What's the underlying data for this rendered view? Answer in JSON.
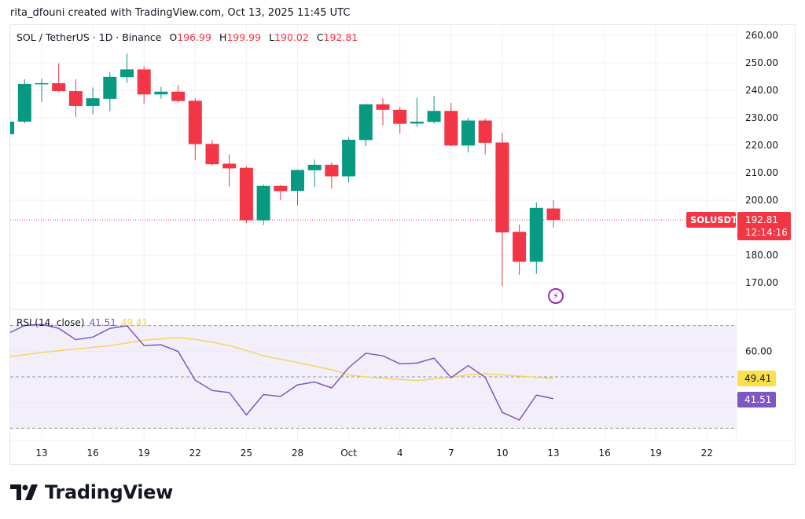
{
  "credit": "rita_dfouni created with TradingView.com, Oct 13, 2025 11:45 UTC",
  "legend": {
    "symbol": "SOL / TetherUS · 1D · Binance",
    "o_label": "O",
    "o": "196.99",
    "h_label": "H",
    "h": "199.99",
    "l_label": "L",
    "l": "190.02",
    "c_label": "C",
    "c": "192.81"
  },
  "badges": {
    "symbol": "SOLUSDT",
    "last_price": "192.81",
    "countdown": "12:14:16",
    "rsi_ma": "49.41",
    "rsi": "41.51"
  },
  "rsi_legend": {
    "title": "RSI (14, close)",
    "rsi": "41.51",
    "ma": "49.41"
  },
  "colors": {
    "up": "#089981",
    "down": "#f23645",
    "rsi": "#7e57c2",
    "rsi_ma": "#f5d55a",
    "rsi_band": "#f3effa"
  },
  "icons": {
    "lightning": "lightning-icon",
    "logo": "tradingview-logo"
  },
  "logo_text": "TradingView",
  "chart_data": [
    {
      "type": "candlestick",
      "title": "SOL / TetherUS · 1D · Binance",
      "ylim": [
        165,
        262
      ],
      "yticks": [
        "260.00",
        "250.00",
        "240.00",
        "230.00",
        "220.00",
        "210.00",
        "200.00",
        "180.00",
        "170.00"
      ],
      "ytick_values": [
        260,
        250,
        240,
        230,
        220,
        210,
        200,
        180,
        170
      ],
      "xtick_labels": [
        "13",
        "16",
        "19",
        "22",
        "25",
        "28",
        "Oct",
        "4",
        "7",
        "10",
        "13",
        "16",
        "19",
        "22"
      ],
      "grid": true,
      "last_price": 192.81,
      "candles": [
        {
          "date": "2025-09-11",
          "o": 224.0,
          "h": 229.0,
          "l": 223.5,
          "c": 228.6
        },
        {
          "date": "2025-09-12",
          "o": 228.6,
          "h": 244.0,
          "l": 228.0,
          "c": 242.3
        },
        {
          "date": "2025-09-13",
          "o": 242.3,
          "h": 244.3,
          "l": 235.7,
          "c": 242.6
        },
        {
          "date": "2025-09-14",
          "o": 242.6,
          "h": 249.8,
          "l": 239.4,
          "c": 239.7
        },
        {
          "date": "2025-09-15",
          "o": 239.7,
          "h": 244.0,
          "l": 230.3,
          "c": 234.3
        },
        {
          "date": "2025-09-16",
          "o": 234.3,
          "h": 241.0,
          "l": 231.4,
          "c": 237.1
        },
        {
          "date": "2025-09-17",
          "o": 236.9,
          "h": 246.7,
          "l": 232.4,
          "c": 244.9
        },
        {
          "date": "2025-09-18",
          "o": 244.8,
          "h": 253.4,
          "l": 242.7,
          "c": 247.6
        },
        {
          "date": "2025-09-19",
          "o": 247.6,
          "h": 248.8,
          "l": 235.2,
          "c": 238.5
        },
        {
          "date": "2025-09-20",
          "o": 238.5,
          "h": 241.2,
          "l": 237.0,
          "c": 239.5
        },
        {
          "date": "2025-09-21",
          "o": 239.5,
          "h": 241.9,
          "l": 235.5,
          "c": 236.1
        },
        {
          "date": "2025-09-22",
          "o": 236.2,
          "h": 237.1,
          "l": 214.6,
          "c": 220.4
        },
        {
          "date": "2025-09-23",
          "o": 220.5,
          "h": 221.9,
          "l": 212.6,
          "c": 213.1
        },
        {
          "date": "2025-09-24",
          "o": 213.3,
          "h": 216.7,
          "l": 205.0,
          "c": 211.6
        },
        {
          "date": "2025-09-25",
          "o": 211.8,
          "h": 212.4,
          "l": 191.7,
          "c": 192.7
        },
        {
          "date": "2025-09-26",
          "o": 192.7,
          "h": 205.7,
          "l": 191.0,
          "c": 205.2
        },
        {
          "date": "2025-09-27",
          "o": 205.2,
          "h": 205.5,
          "l": 200.0,
          "c": 203.3
        },
        {
          "date": "2025-09-28",
          "o": 203.4,
          "h": 211.2,
          "l": 198.1,
          "c": 211.0
        },
        {
          "date": "2025-09-29",
          "o": 210.9,
          "h": 214.8,
          "l": 204.8,
          "c": 212.9
        },
        {
          "date": "2025-09-30",
          "o": 212.9,
          "h": 213.8,
          "l": 204.3,
          "c": 208.7
        },
        {
          "date": "2025-10-01",
          "o": 208.7,
          "h": 222.9,
          "l": 206.4,
          "c": 222.0
        },
        {
          "date": "2025-10-02",
          "o": 221.9,
          "h": 235.2,
          "l": 219.7,
          "c": 234.9
        },
        {
          "date": "2025-10-03",
          "o": 234.9,
          "h": 237.1,
          "l": 227.3,
          "c": 232.9
        },
        {
          "date": "2025-10-04",
          "o": 232.9,
          "h": 234.0,
          "l": 224.3,
          "c": 227.8
        },
        {
          "date": "2025-10-05",
          "o": 227.9,
          "h": 237.3,
          "l": 226.7,
          "c": 228.6
        },
        {
          "date": "2025-10-06",
          "o": 228.5,
          "h": 238.0,
          "l": 227.9,
          "c": 232.5
        },
        {
          "date": "2025-10-07",
          "o": 232.5,
          "h": 235.4,
          "l": 219.6,
          "c": 219.9
        },
        {
          "date": "2025-10-08",
          "o": 219.9,
          "h": 230.0,
          "l": 217.4,
          "c": 229.0
        },
        {
          "date": "2025-10-09",
          "o": 229.0,
          "h": 229.7,
          "l": 216.7,
          "c": 220.9
        },
        {
          "date": "2025-10-10",
          "o": 221.0,
          "h": 224.5,
          "l": 168.9,
          "c": 188.3
        },
        {
          "date": "2025-10-11",
          "o": 188.5,
          "h": 191.1,
          "l": 172.9,
          "c": 177.6
        },
        {
          "date": "2025-10-12",
          "o": 177.6,
          "h": 199.2,
          "l": 173.2,
          "c": 197.2
        },
        {
          "date": "2025-10-13",
          "o": 196.99,
          "h": 199.99,
          "l": 190.02,
          "c": 192.81
        }
      ]
    },
    {
      "type": "line",
      "title": "RSI (14, close)",
      "ylim": [
        30,
        70
      ],
      "yticks": [
        "60.00"
      ],
      "ytick_values": [
        60
      ],
      "bands": [
        70,
        50,
        30
      ],
      "series": [
        {
          "name": "RSI",
          "values": [
            66.8,
            70.0,
            70.5,
            68.9,
            64.5,
            65.5,
            68.9,
            69.9,
            62.2,
            62.5,
            59.9,
            48.7,
            44.7,
            43.9,
            35.2,
            43.1,
            42.4,
            46.9,
            48.0,
            45.7,
            53.6,
            59.2,
            58.2,
            55.1,
            55.4,
            57.3,
            49.7,
            54.4,
            49.8,
            36.2,
            33.2,
            42.9,
            41.51
          ]
        },
        {
          "name": "MA",
          "values": [
            57.8,
            58.6,
            59.5,
            60.2,
            60.9,
            61.5,
            62.2,
            63.2,
            64.3,
            64.8,
            65.3,
            64.6,
            63.5,
            62.2,
            60.3,
            58.2,
            56.9,
            55.6,
            54.2,
            52.8,
            50.8,
            50.0,
            49.5,
            49.0,
            48.6,
            49.2,
            49.8,
            50.8,
            51.2,
            50.8,
            50.3,
            49.8,
            49.41
          ]
        }
      ]
    }
  ]
}
